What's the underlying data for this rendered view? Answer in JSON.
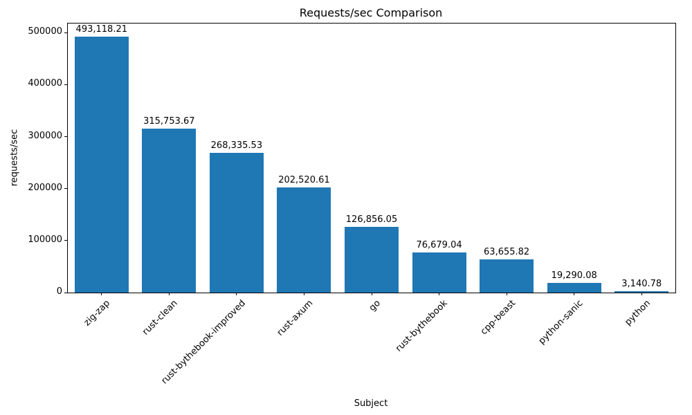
{
  "chart_data": {
    "type": "bar",
    "title": "Requests/sec Comparison",
    "xlabel": "Subject",
    "ylabel": "requests/sec",
    "categories": [
      "zig-zap",
      "rust-clean",
      "rust-bythebook-improved",
      "rust-axum",
      "go",
      "rust-bythebook",
      "cpp-beast",
      "python-sanic",
      "python"
    ],
    "values": [
      493118.21,
      315753.67,
      268335.53,
      202520.61,
      126856.05,
      76679.04,
      63655.82,
      19290.08,
      3140.78
    ],
    "bar_labels": [
      "493,118.21",
      "315,753.67",
      "268,335.53",
      "202,520.61",
      "126,856.05",
      "76,679.04",
      "63,655.82",
      "19,290.08",
      "3,140.78"
    ],
    "ylim": [
      0,
      517774
    ],
    "yticks": [
      0,
      100000,
      200000,
      300000,
      400000,
      500000
    ],
    "ytick_labels": [
      "0",
      "100000",
      "200000",
      "300000",
      "400000",
      "500000"
    ],
    "bar_color": "#1f77b4",
    "grid": false,
    "legend": false
  }
}
